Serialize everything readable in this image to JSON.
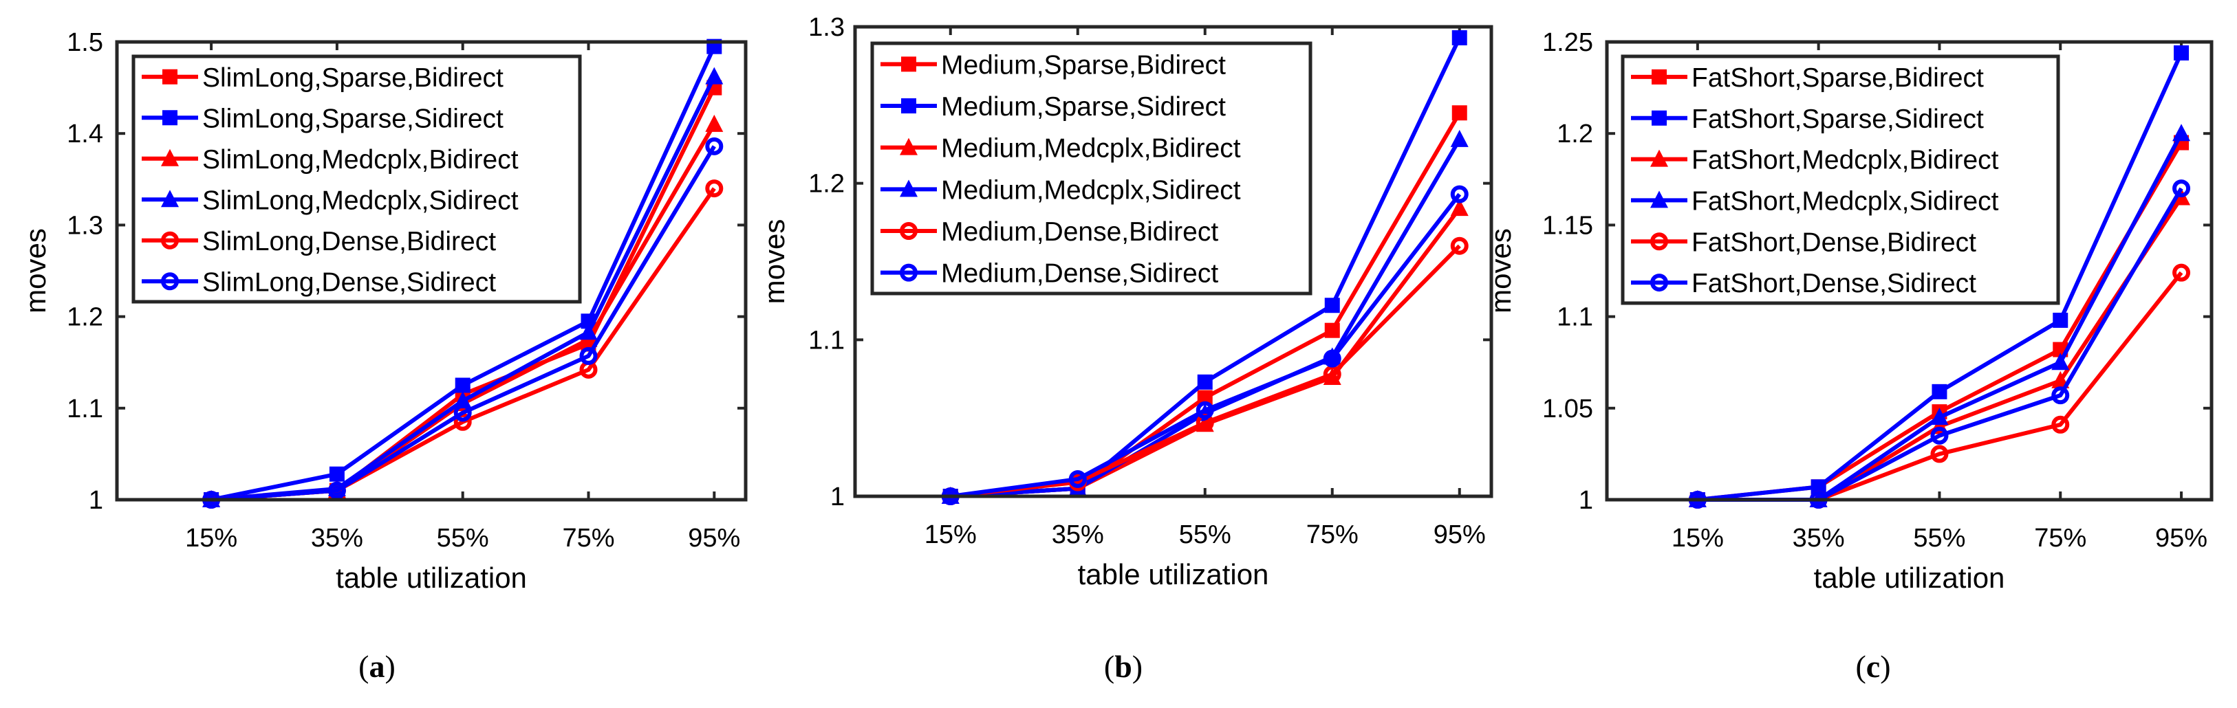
{
  "colors": {
    "bidirect": "#ff0000",
    "sidirect": "#0000ff",
    "axes": "#262626"
  },
  "chart_data": [
    {
      "type": "line",
      "caption_open": "(",
      "caption_letter": "a",
      "caption_close": ")",
      "xlabel": "table utilization",
      "ylabel": "moves",
      "x": [
        15,
        35,
        55,
        75,
        95
      ],
      "xtick_labels": [
        "15%",
        "35%",
        "55%",
        "75%",
        "95%"
      ],
      "xlim": [
        0,
        100
      ],
      "ylim": [
        1,
        1.5
      ],
      "yticks": [
        1,
        1.1,
        1.2,
        1.3,
        1.4,
        1.5
      ],
      "ytick_labels": [
        "1",
        "1.1",
        "1.2",
        "1.3",
        "1.4",
        "1.5"
      ],
      "legend_position": "top-left",
      "grid": false,
      "series": [
        {
          "name": "SlimLong,Sparse,Bidirect",
          "color": "#ff0000",
          "marker": "square",
          "values": [
            1,
            1.01,
            1.115,
            1.17,
            1.45
          ]
        },
        {
          "name": "SlimLong,Sparse,Sidirect",
          "color": "#0000ff",
          "marker": "square",
          "values": [
            1,
            1.028,
            1.125,
            1.195,
            1.495
          ]
        },
        {
          "name": "SlimLong,Medcplx,Bidirect",
          "color": "#ff0000",
          "marker": "triangle",
          "values": [
            1,
            1.01,
            1.105,
            1.175,
            1.41
          ]
        },
        {
          "name": "SlimLong,Medcplx,Sidirect",
          "color": "#0000ff",
          "marker": "triangle",
          "values": [
            1,
            1.012,
            1.108,
            1.183,
            1.462
          ]
        },
        {
          "name": "SlimLong,Dense,Bidirect",
          "color": "#ff0000",
          "marker": "circle",
          "values": [
            1,
            1.01,
            1.085,
            1.142,
            1.34
          ]
        },
        {
          "name": "SlimLong,Dense,Sidirect",
          "color": "#0000ff",
          "marker": "circle",
          "values": [
            1,
            1.01,
            1.095,
            1.157,
            1.386
          ]
        }
      ]
    },
    {
      "type": "line",
      "caption_open": "(",
      "caption_letter": "b",
      "caption_close": ")",
      "xlabel": "table utilization",
      "ylabel": "moves",
      "x": [
        15,
        35,
        55,
        75,
        95
      ],
      "xtick_labels": [
        "15%",
        "35%",
        "55%",
        "75%",
        "95%"
      ],
      "xlim": [
        0,
        100
      ],
      "ylim": [
        1,
        1.3
      ],
      "yticks": [
        1,
        1.1,
        1.2,
        1.3
      ],
      "ytick_labels": [
        "1",
        "1.1",
        "1.2",
        "1.3"
      ],
      "legend_position": "top-left",
      "grid": false,
      "series": [
        {
          "name": "Medium,Sparse,Bidirect",
          "color": "#ff0000",
          "marker": "square",
          "values": [
            1,
            1.005,
            1.063,
            1.106,
            1.245
          ]
        },
        {
          "name": "Medium,Sparse,Sidirect",
          "color": "#0000ff",
          "marker": "square",
          "values": [
            1,
            1.005,
            1.073,
            1.122,
            1.293
          ]
        },
        {
          "name": "Medium,Medcplx,Bidirect",
          "color": "#ff0000",
          "marker": "triangle",
          "values": [
            1,
            1.005,
            1.046,
            1.076,
            1.184
          ]
        },
        {
          "name": "Medium,Medcplx,Sidirect",
          "color": "#0000ff",
          "marker": "triangle",
          "values": [
            1,
            1.005,
            1.053,
            1.089,
            1.228
          ]
        },
        {
          "name": "Medium,Dense,Bidirect",
          "color": "#ff0000",
          "marker": "circle",
          "values": [
            1,
            1.009,
            1.047,
            1.078,
            1.16
          ]
        },
        {
          "name": "Medium,Dense,Sidirect",
          "color": "#0000ff",
          "marker": "circle",
          "values": [
            1,
            1.011,
            1.055,
            1.088,
            1.193
          ]
        }
      ]
    },
    {
      "type": "line",
      "caption_open": "(",
      "caption_letter": "c",
      "caption_close": ")",
      "xlabel": "table utilization",
      "ylabel": "moves",
      "x": [
        15,
        35,
        55,
        75,
        95
      ],
      "xtick_labels": [
        "15%",
        "35%",
        "55%",
        "75%",
        "95%"
      ],
      "xlim": [
        0,
        100
      ],
      "ylim": [
        1,
        1.25
      ],
      "yticks": [
        1,
        1.05,
        1.1,
        1.15,
        1.2,
        1.25
      ],
      "ytick_labels": [
        "1",
        "1.05",
        "1.1",
        "1.15",
        "1.2",
        "1.25"
      ],
      "legend_position": "top-left",
      "grid": false,
      "series": [
        {
          "name": "FatShort,Sparse,Bidirect",
          "color": "#ff0000",
          "marker": "square",
          "values": [
            1,
            1.007,
            1.048,
            1.082,
            1.195
          ]
        },
        {
          "name": "FatShort,Sparse,Sidirect",
          "color": "#0000ff",
          "marker": "square",
          "values": [
            1,
            1.007,
            1.059,
            1.098,
            1.244
          ]
        },
        {
          "name": "FatShort,Medcplx,Bidirect",
          "color": "#ff0000",
          "marker": "triangle",
          "values": [
            1,
            1,
            1.04,
            1.065,
            1.165
          ]
        },
        {
          "name": "FatShort,Medcplx,Sidirect",
          "color": "#0000ff",
          "marker": "triangle",
          "values": [
            1,
            1,
            1.045,
            1.075,
            1.2
          ]
        },
        {
          "name": "FatShort,Dense,Bidirect",
          "color": "#ff0000",
          "marker": "circle",
          "values": [
            1,
            1,
            1.025,
            1.041,
            1.124
          ]
        },
        {
          "name": "FatShort,Dense,Sidirect",
          "color": "#0000ff",
          "marker": "circle",
          "values": [
            1,
            1,
            1.035,
            1.057,
            1.17
          ]
        }
      ]
    }
  ]
}
